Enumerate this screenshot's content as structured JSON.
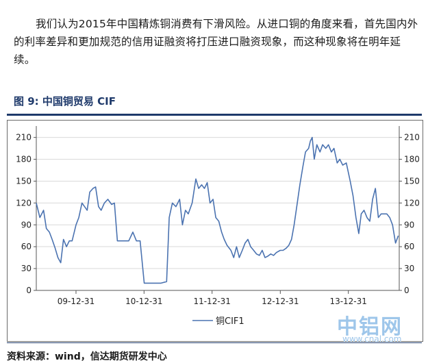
{
  "paragraph": "我们认为2015年中国精炼铜消费有下滑风险。从进口铜的角度来看，首先国内外的利率差异和更加规范的信用证融资将打压进口融资现象，而这种现象将在明年延续。",
  "figure_title": "图 9:  中国铜贸易 CIF",
  "source": "资料来源：wind，信达期货研发中心",
  "watermark": {
    "cn": "中铝网",
    "url": "www.cnal.com"
  },
  "colors": {
    "series": "#4a72b0",
    "title": "#1f3a6b",
    "grid": "#d9d9d9"
  },
  "chart_data": {
    "type": "line",
    "title": "",
    "xlabel": "",
    "ylabel": "",
    "x_tick_labels": [
      "09-12-31",
      "10-12-31",
      "11-12-31",
      "12-12-31",
      "13-12-31"
    ],
    "x_ticks": [
      "2009-12-31",
      "2010-12-31",
      "2011-12-31",
      "2012-12-31",
      "2013-12-31"
    ],
    "xlim": [
      "2009-06-01",
      "2014-09-30"
    ],
    "ylim": [
      0,
      220
    ],
    "y_ticks": [
      0,
      30,
      60,
      90,
      120,
      150,
      180,
      210
    ],
    "dual_y_axis": true,
    "grid": "horizontal",
    "legend": "bottom-center",
    "series": [
      {
        "name": "铜CIF1",
        "points": [
          [
            "2009-06-01",
            120
          ],
          [
            "2009-06-20",
            100
          ],
          [
            "2009-07-10",
            110
          ],
          [
            "2009-07-25",
            85
          ],
          [
            "2009-08-10",
            80
          ],
          [
            "2009-08-25",
            70
          ],
          [
            "2009-09-10",
            58
          ],
          [
            "2009-09-25",
            45
          ],
          [
            "2009-10-10",
            38
          ],
          [
            "2009-10-25",
            70
          ],
          [
            "2009-11-10",
            60
          ],
          [
            "2009-11-25",
            68
          ],
          [
            "2009-12-10",
            68
          ],
          [
            "2009-12-31",
            90
          ],
          [
            "2010-01-15",
            100
          ],
          [
            "2010-02-01",
            120
          ],
          [
            "2010-02-15",
            115
          ],
          [
            "2010-03-01",
            110
          ],
          [
            "2010-03-15",
            135
          ],
          [
            "2010-04-01",
            140
          ],
          [
            "2010-04-15",
            142
          ],
          [
            "2010-05-01",
            115
          ],
          [
            "2010-05-15",
            110
          ],
          [
            "2010-06-01",
            120
          ],
          [
            "2010-06-20",
            125
          ],
          [
            "2010-07-10",
            118
          ],
          [
            "2010-07-25",
            120
          ],
          [
            "2010-08-10",
            68
          ],
          [
            "2010-09-10",
            68
          ],
          [
            "2010-10-10",
            68
          ],
          [
            "2010-11-01",
            80
          ],
          [
            "2010-11-20",
            68
          ],
          [
            "2010-12-10",
            68
          ],
          [
            "2011-01-01",
            10
          ],
          [
            "2011-02-01",
            10
          ],
          [
            "2011-03-01",
            10
          ],
          [
            "2011-04-01",
            10
          ],
          [
            "2011-05-01",
            12
          ],
          [
            "2011-05-15",
            100
          ],
          [
            "2011-06-01",
            120
          ],
          [
            "2011-06-20",
            115
          ],
          [
            "2011-07-10",
            125
          ],
          [
            "2011-07-25",
            90
          ],
          [
            "2011-08-10",
            110
          ],
          [
            "2011-08-25",
            105
          ],
          [
            "2011-09-15",
            120
          ],
          [
            "2011-10-05",
            153
          ],
          [
            "2011-10-20",
            140
          ],
          [
            "2011-11-05",
            145
          ],
          [
            "2011-11-20",
            140
          ],
          [
            "2011-12-05",
            148
          ],
          [
            "2011-12-20",
            120
          ],
          [
            "2012-01-05",
            125
          ],
          [
            "2012-01-20",
            100
          ],
          [
            "2012-02-05",
            95
          ],
          [
            "2012-02-20",
            80
          ],
          [
            "2012-03-05",
            70
          ],
          [
            "2012-03-20",
            62
          ],
          [
            "2012-04-10",
            55
          ],
          [
            "2012-04-25",
            45
          ],
          [
            "2012-05-10",
            60
          ],
          [
            "2012-05-25",
            45
          ],
          [
            "2012-06-10",
            55
          ],
          [
            "2012-06-25",
            65
          ],
          [
            "2012-07-10",
            70
          ],
          [
            "2012-07-25",
            60
          ],
          [
            "2012-08-10",
            55
          ],
          [
            "2012-08-25",
            50
          ],
          [
            "2012-09-10",
            48
          ],
          [
            "2012-09-25",
            55
          ],
          [
            "2012-10-10",
            45
          ],
          [
            "2012-10-25",
            47
          ],
          [
            "2012-11-10",
            50
          ],
          [
            "2012-11-25",
            48
          ],
          [
            "2012-12-10",
            52
          ],
          [
            "2012-12-31",
            55
          ],
          [
            "2013-01-15",
            55
          ],
          [
            "2013-02-01",
            58
          ],
          [
            "2013-02-15",
            62
          ],
          [
            "2013-03-01",
            70
          ],
          [
            "2013-03-15",
            90
          ],
          [
            "2013-04-01",
            120
          ],
          [
            "2013-04-15",
            145
          ],
          [
            "2013-05-01",
            170
          ],
          [
            "2013-05-15",
            190
          ],
          [
            "2013-06-01",
            195
          ],
          [
            "2013-06-10",
            205
          ],
          [
            "2013-06-20",
            210
          ],
          [
            "2013-07-01",
            180
          ],
          [
            "2013-07-15",
            200
          ],
          [
            "2013-08-01",
            190
          ],
          [
            "2013-08-15",
            200
          ],
          [
            "2013-09-01",
            195
          ],
          [
            "2013-09-15",
            200
          ],
          [
            "2013-10-01",
            190
          ],
          [
            "2013-10-15",
            195
          ],
          [
            "2013-11-01",
            175
          ],
          [
            "2013-11-15",
            180
          ],
          [
            "2013-12-01",
            172
          ],
          [
            "2013-12-20",
            175
          ],
          [
            "2014-01-10",
            150
          ],
          [
            "2014-01-25",
            130
          ],
          [
            "2014-02-10",
            100
          ],
          [
            "2014-02-25",
            78
          ],
          [
            "2014-03-10",
            105
          ],
          [
            "2014-03-25",
            110
          ],
          [
            "2014-04-10",
            100
          ],
          [
            "2014-04-25",
            95
          ],
          [
            "2014-05-10",
            125
          ],
          [
            "2014-05-25",
            140
          ],
          [
            "2014-06-10",
            100
          ],
          [
            "2014-06-25",
            105
          ],
          [
            "2014-07-10",
            105
          ],
          [
            "2014-07-25",
            105
          ],
          [
            "2014-08-10",
            100
          ],
          [
            "2014-08-25",
            90
          ],
          [
            "2014-09-10",
            65
          ],
          [
            "2014-09-25",
            75
          ]
        ]
      }
    ]
  }
}
